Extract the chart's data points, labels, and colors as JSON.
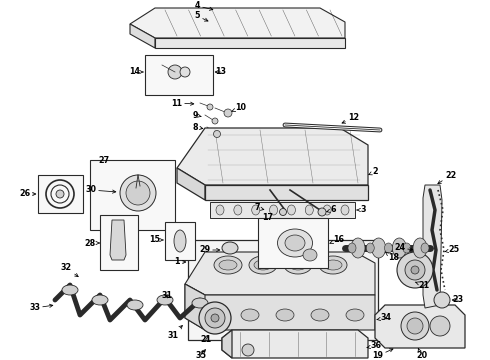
{
  "bg_color": "#ffffff",
  "lc": "#2a2a2a",
  "label_fs": 5.8,
  "fig_w": 4.9,
  "fig_h": 3.6,
  "dpi": 100
}
